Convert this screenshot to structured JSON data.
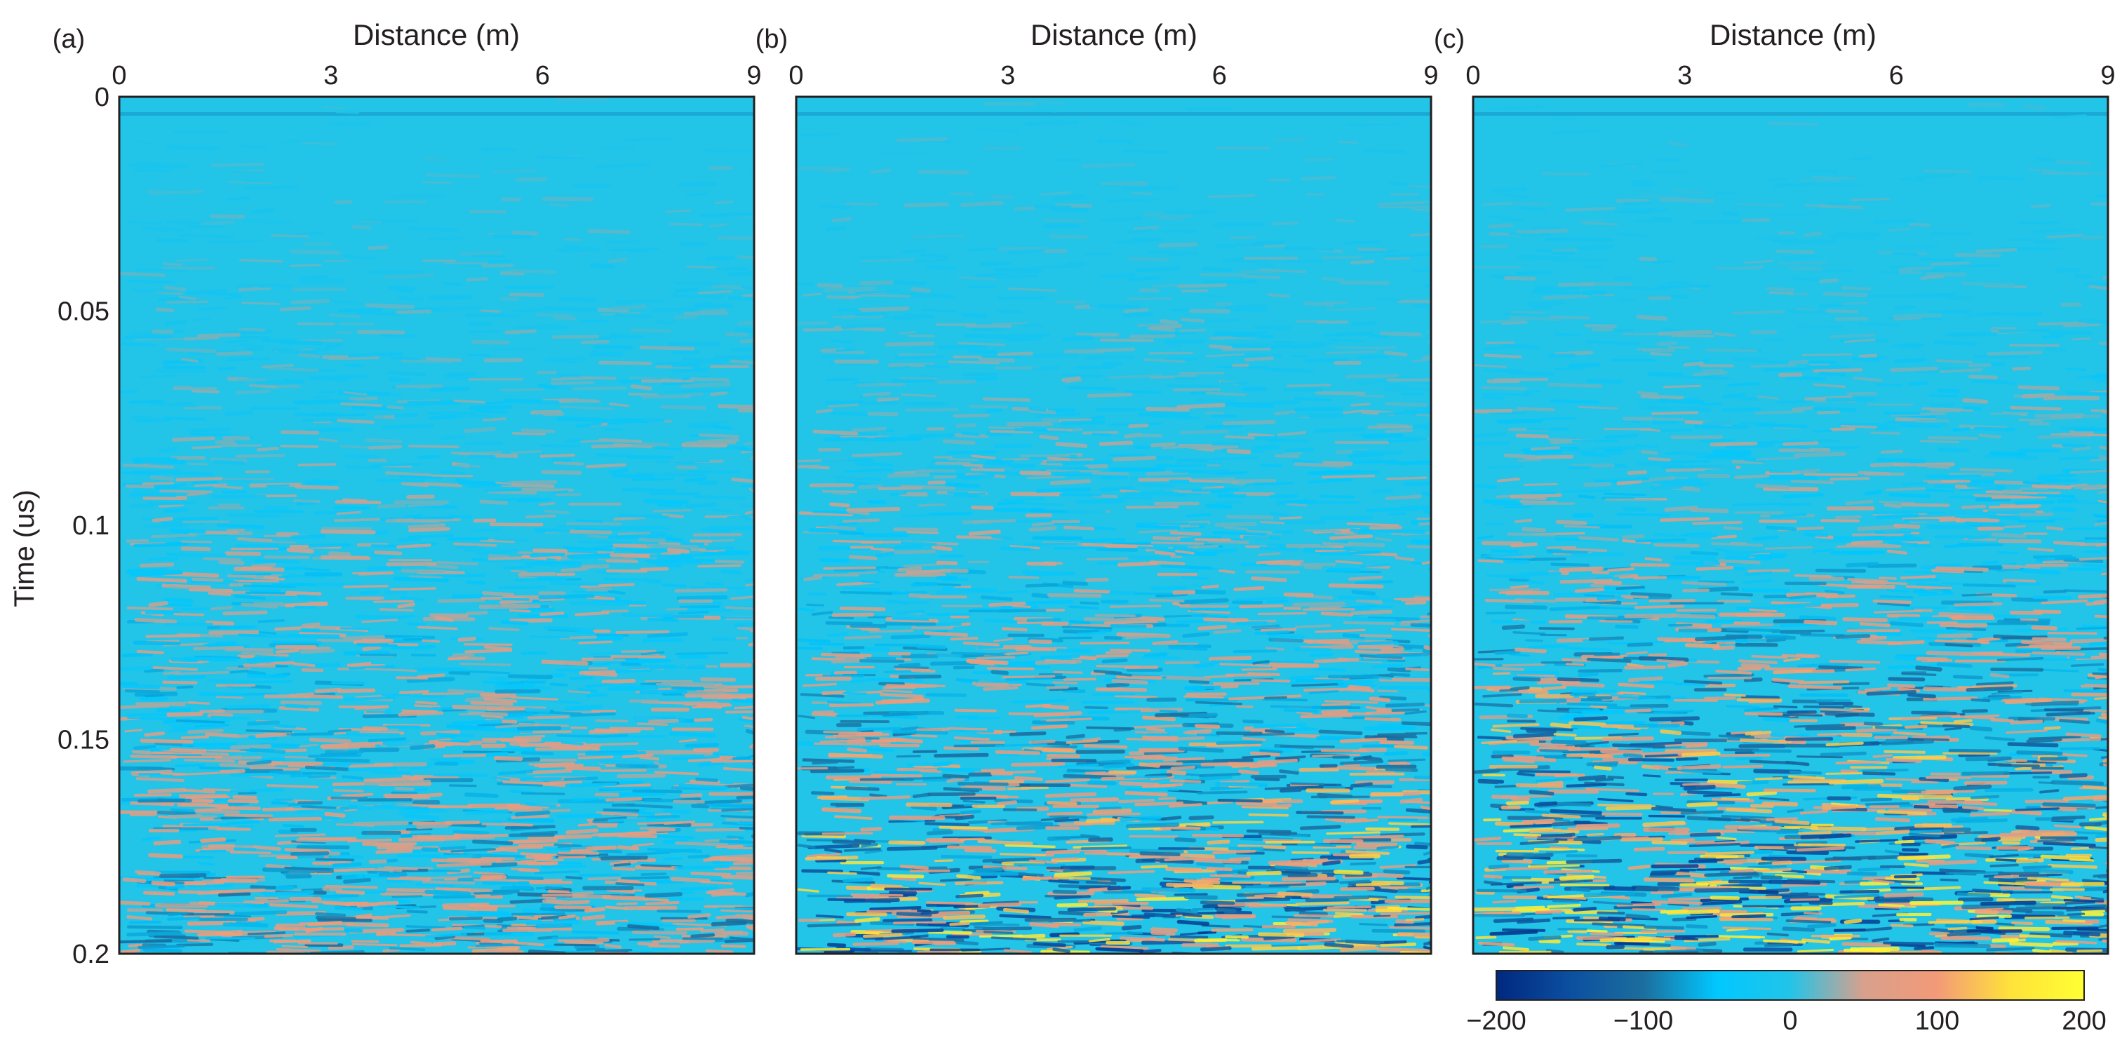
{
  "figure": {
    "ylabel": "Time (us)",
    "colorbar": {
      "ticks": [
        "−200",
        "−100",
        "0",
        "100",
        "200"
      ],
      "min": -200,
      "max": 200,
      "colormap": [
        "#00287f",
        "#0b4fa0",
        "#1c6e9e",
        "#00c8ff",
        "#22c4e8",
        "#d8a08c",
        "#f39a78",
        "#ffe23a",
        "#ffff33"
      ]
    }
  },
  "chart_data": [
    {
      "panel": "(a)",
      "type": "heatmap",
      "title": "",
      "xlabel": "Distance (m)",
      "ylabel": "Time (us)",
      "xlim": [
        0,
        9
      ],
      "ylim": [
        0,
        0.2
      ],
      "x_ticks": [
        "0",
        "3",
        "6",
        "9"
      ],
      "y_ticks": [
        "0",
        "0.05",
        "0.1",
        "0.15",
        "0.2"
      ],
      "y_reversed": true,
      "x_axis_position": "top",
      "value_range": [
        -200,
        200
      ],
      "amplitude_profile": [
        {
          "time": 0.0,
          "max_abs": 10
        },
        {
          "time": 0.05,
          "max_abs": 25
        },
        {
          "time": 0.1,
          "max_abs": 50
        },
        {
          "time": 0.15,
          "max_abs": 80
        },
        {
          "time": 0.2,
          "max_abs": 110
        }
      ],
      "seed": 11
    },
    {
      "panel": "(b)",
      "type": "heatmap",
      "title": "",
      "xlabel": "Distance (m)",
      "xlim": [
        0,
        9
      ],
      "ylim": [
        0,
        0.2
      ],
      "x_ticks": [
        "0",
        "3",
        "6",
        "9"
      ],
      "y_reversed": true,
      "x_axis_position": "top",
      "value_range": [
        -200,
        200
      ],
      "amplitude_profile": [
        {
          "time": 0.0,
          "max_abs": 10
        },
        {
          "time": 0.05,
          "max_abs": 25
        },
        {
          "time": 0.1,
          "max_abs": 55
        },
        {
          "time": 0.15,
          "max_abs": 110
        },
        {
          "time": 0.2,
          "max_abs": 190
        }
      ],
      "seed": 23
    },
    {
      "panel": "(c)",
      "type": "heatmap",
      "title": "",
      "xlabel": "Distance (m)",
      "xlim": [
        0,
        9
      ],
      "ylim": [
        0,
        0.2
      ],
      "x_ticks": [
        "0",
        "3",
        "6",
        "9"
      ],
      "y_reversed": true,
      "x_axis_position": "top",
      "value_range": [
        -200,
        200
      ],
      "amplitude_profile": [
        {
          "time": 0.0,
          "max_abs": 10
        },
        {
          "time": 0.05,
          "max_abs": 25
        },
        {
          "time": 0.1,
          "max_abs": 60
        },
        {
          "time": 0.15,
          "max_abs": 140
        },
        {
          "time": 0.2,
          "max_abs": 200
        }
      ],
      "seed": 37
    }
  ]
}
